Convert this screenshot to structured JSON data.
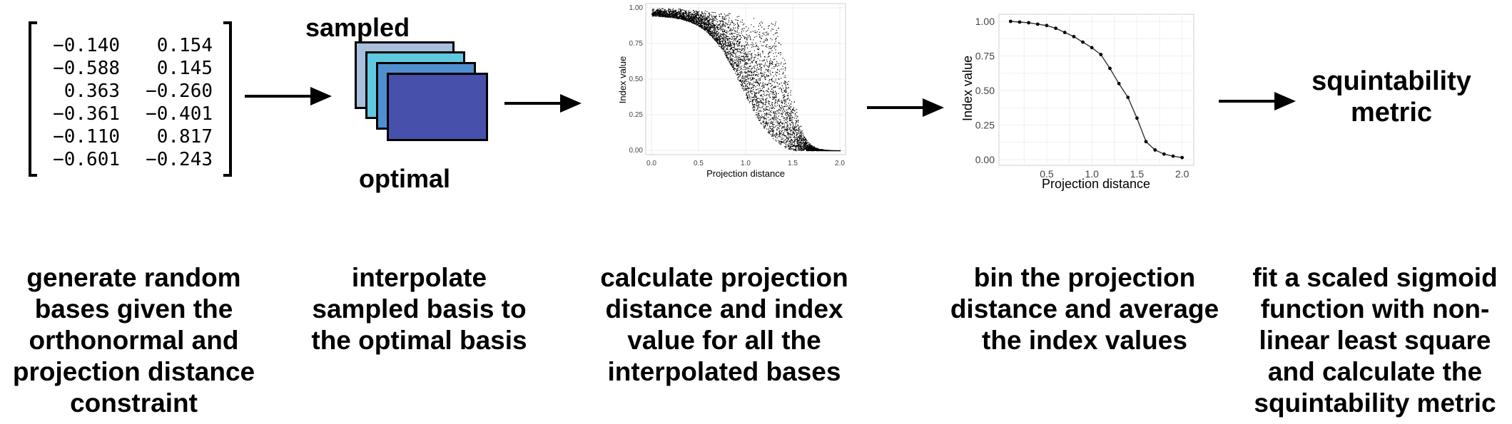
{
  "matrix": {
    "rows": [
      [
        "−0.140",
        "0.154"
      ],
      [
        "−0.588",
        "0.145"
      ],
      [
        "0.363",
        "−0.260"
      ],
      [
        "−0.361",
        "−0.401"
      ],
      [
        "−0.110",
        "0.817"
      ],
      [
        "−0.601",
        "−0.243"
      ]
    ]
  },
  "stack": {
    "top_label": "sampled",
    "bottom_label": "optimal",
    "colors": [
      "#a9bfdc",
      "#5fc9e0",
      "#4f8fd0",
      "#4750ab"
    ]
  },
  "scatter_plot": {
    "ylabel": "Index value",
    "xlabel": "Projection distance",
    "x_ticks": [
      "0.0",
      "0.5",
      "1.0",
      "1.5",
      "2.0"
    ],
    "y_ticks": [
      "0.00",
      "0.25",
      "0.50",
      "0.75",
      "1.00"
    ]
  },
  "binned_plot": {
    "ylabel": "Index value",
    "xlabel": "Projection distance",
    "x_ticks": [
      "0.5",
      "1.0",
      "1.5",
      "2.0"
    ],
    "y_ticks": [
      "0.00",
      "0.25",
      "0.50",
      "0.75",
      "1.00"
    ]
  },
  "metric": {
    "lines": [
      "squintability",
      "metric"
    ]
  },
  "captions": [
    {
      "lines": [
        "generate random",
        "bases given the",
        "orthonormal and",
        "projection distance",
        "constraint"
      ]
    },
    {
      "lines": [
        "interpolate",
        "sampled basis to",
        "the optimal basis"
      ]
    },
    {
      "lines": [
        "calculate projection",
        "distance and index",
        "value for all the",
        "interpolated bases"
      ]
    },
    {
      "lines": [
        "bin the projection",
        "distance and average",
        "the index values"
      ]
    },
    {
      "lines": [
        "fit a scaled sigmoid",
        "function with non-",
        "linear least square",
        "and calculate the",
        "squintability metric"
      ]
    }
  ],
  "chart_data": [
    {
      "type": "scatter",
      "title": "",
      "xlabel": "Projection distance",
      "ylabel": "Index value",
      "xlim": [
        0,
        2
      ],
      "ylim": [
        0,
        1
      ],
      "grid": true,
      "description_of_points": "dense cloud of points decreasing sigmoidally from 1.00 near x=0 to 0.00 near x=2"
    },
    {
      "type": "line",
      "title": "",
      "xlabel": "Projection distance",
      "ylabel": "Index value",
      "xlim": [
        0.05,
        2.05
      ],
      "ylim": [
        0,
        1
      ],
      "grid": true,
      "x": [
        0.1,
        0.2,
        0.3,
        0.4,
        0.5,
        0.6,
        0.7,
        0.8,
        0.9,
        1.0,
        1.1,
        1.2,
        1.3,
        1.4,
        1.5,
        1.6,
        1.7,
        1.8,
        1.9,
        2.0
      ],
      "series": [
        {
          "values": [
            1.0,
            0.995,
            0.99,
            0.98,
            0.97,
            0.95,
            0.92,
            0.89,
            0.85,
            0.81,
            0.76,
            0.66,
            0.55,
            0.45,
            0.3,
            0.13,
            0.07,
            0.04,
            0.025,
            0.015
          ]
        }
      ]
    }
  ]
}
